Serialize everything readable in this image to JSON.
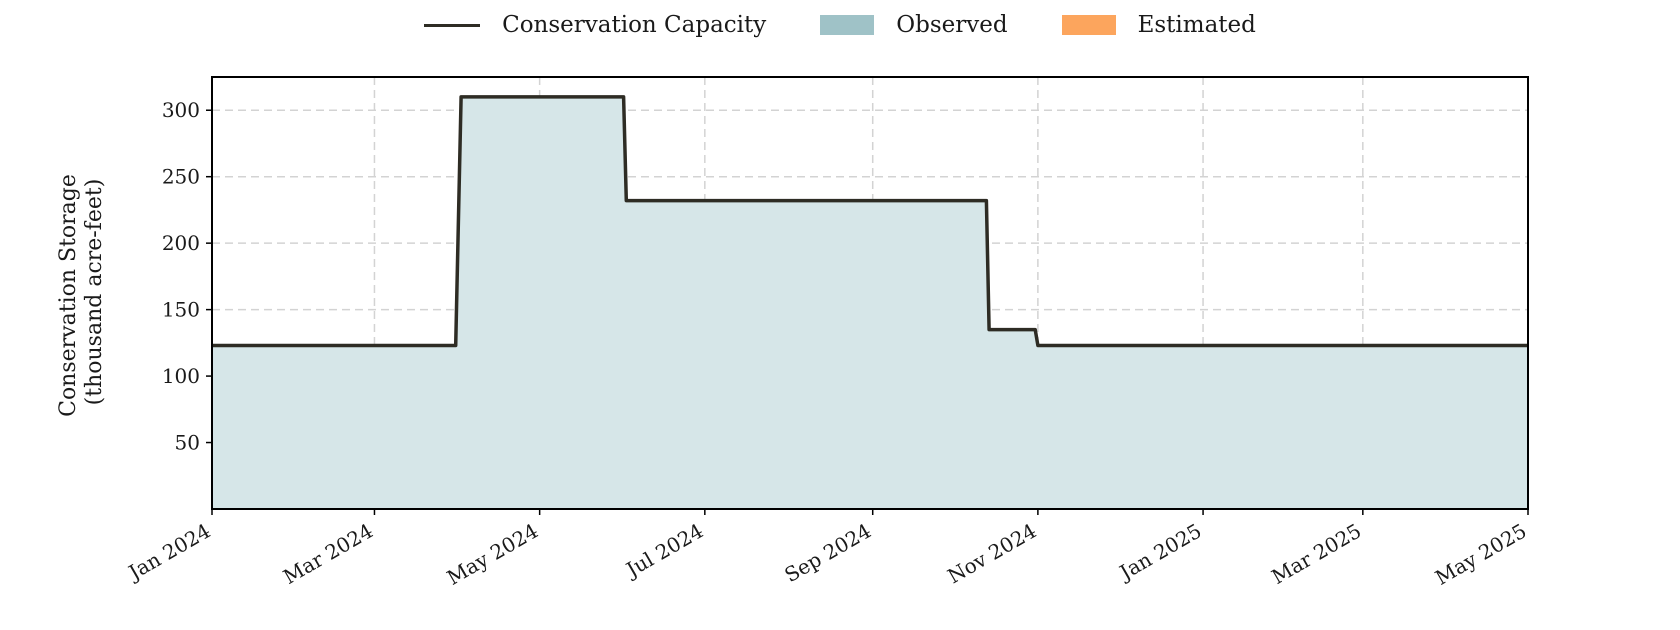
{
  "legend": {
    "items": [
      {
        "label": "Conservation Capacity",
        "kind": "line",
        "color": "#2e2c24"
      },
      {
        "label": "Observed",
        "kind": "box",
        "color": "#9fc2c7"
      },
      {
        "label": "Estimated",
        "kind": "box",
        "color": "#fca55d"
      }
    ]
  },
  "colors": {
    "capacity_line": "#2e2c24",
    "observed_fill": "#d6e6e8",
    "grid": "#d3d3d3",
    "frame": "#000000"
  },
  "chart_data": {
    "type": "area",
    "ylabel_line1": "Conservation Storage",
    "ylabel_line2": "(thousand acre-feet)",
    "xlabel": "",
    "x_range": [
      "2024-01-01",
      "2025-05-01"
    ],
    "ylim": [
      0,
      325
    ],
    "y_ticks": [
      50,
      100,
      150,
      200,
      250,
      300
    ],
    "x_ticks": [
      {
        "date": "2024-01-01",
        "label": "Jan 2024"
      },
      {
        "date": "2024-03-01",
        "label": "Mar 2024"
      },
      {
        "date": "2024-05-01",
        "label": "May 2024"
      },
      {
        "date": "2024-07-01",
        "label": "Jul 2024"
      },
      {
        "date": "2024-09-01",
        "label": "Sep 2024"
      },
      {
        "date": "2024-11-01",
        "label": "Nov 2024"
      },
      {
        "date": "2025-01-01",
        "label": "Jan 2025"
      },
      {
        "date": "2025-03-01",
        "label": "Mar 2025"
      },
      {
        "date": "2025-05-01",
        "label": "May 2025"
      }
    ],
    "grid": true,
    "legend_position": "top-center",
    "series": [
      {
        "name": "Conservation Capacity",
        "kind": "line",
        "points": [
          {
            "date": "2024-01-01",
            "value": 123
          },
          {
            "date": "2024-03-31",
            "value": 123
          },
          {
            "date": "2024-04-02",
            "value": 310
          },
          {
            "date": "2024-06-01",
            "value": 310
          },
          {
            "date": "2024-06-02",
            "value": 232
          },
          {
            "date": "2024-10-13",
            "value": 232
          },
          {
            "date": "2024-10-14",
            "value": 135
          },
          {
            "date": "2024-10-31",
            "value": 135
          },
          {
            "date": "2024-11-01",
            "value": 123
          },
          {
            "date": "2025-05-01",
            "value": 123
          }
        ]
      },
      {
        "name": "Observed",
        "kind": "area",
        "points": [
          {
            "date": "2024-01-01",
            "value": 123
          },
          {
            "date": "2024-03-31",
            "value": 123
          },
          {
            "date": "2024-04-02",
            "value": 310
          },
          {
            "date": "2024-06-01",
            "value": 310
          },
          {
            "date": "2024-06-02",
            "value": 232
          },
          {
            "date": "2024-10-13",
            "value": 232
          },
          {
            "date": "2024-10-14",
            "value": 135
          },
          {
            "date": "2024-10-31",
            "value": 135
          },
          {
            "date": "2024-11-01",
            "value": 123
          },
          {
            "date": "2025-05-01",
            "value": 123
          }
        ]
      },
      {
        "name": "Estimated",
        "kind": "area",
        "points": []
      }
    ]
  }
}
